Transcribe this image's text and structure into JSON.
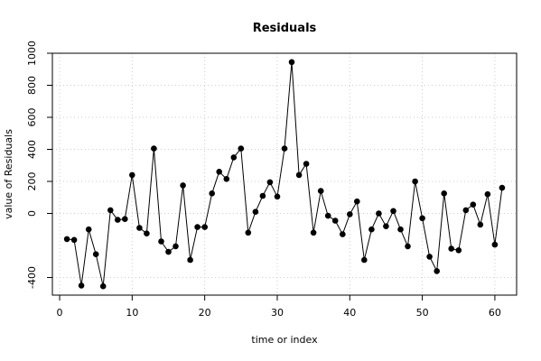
{
  "chart_data": {
    "type": "line",
    "title": "Residuals",
    "xlabel": "time or index",
    "ylabel": "value of Residuals",
    "xlim": [
      -1,
      63
    ],
    "ylim": [
      -510,
      1000
    ],
    "x_ticks": [
      0,
      10,
      20,
      30,
      40,
      50,
      60
    ],
    "y_ticks": [
      -400,
      0,
      200,
      400,
      600,
      800,
      1000
    ],
    "grid": true,
    "markers": "filled-circle",
    "line_color": "#000000",
    "grid_color": "#cccccc",
    "series": [
      {
        "x": [
          1,
          2,
          3,
          4,
          5,
          6,
          7,
          8,
          9,
          10,
          11,
          12,
          13,
          14,
          15,
          16,
          17,
          18,
          19,
          20,
          21,
          22,
          23,
          24,
          25,
          26,
          27,
          28,
          29,
          30,
          31,
          32,
          33,
          34,
          35,
          36,
          37,
          38,
          39,
          40,
          41,
          42,
          43,
          44,
          45,
          46,
          47,
          48,
          49,
          50,
          51,
          52,
          53,
          54,
          55,
          56,
          57,
          58,
          59,
          60,
          61
        ],
        "values": [
          -160,
          -165,
          -450,
          -100,
          -255,
          -455,
          20,
          -40,
          -35,
          240,
          -90,
          -125,
          405,
          -175,
          -240,
          -205,
          175,
          -290,
          -85,
          -85,
          125,
          260,
          215,
          350,
          405,
          -120,
          10,
          110,
          195,
          105,
          405,
          945,
          240,
          310,
          -120,
          140,
          -15,
          -45,
          -130,
          -5,
          75,
          -290,
          -100,
          0,
          -80,
          15,
          -100,
          -205,
          200,
          -30,
          -270,
          -360,
          125,
          -220,
          -230,
          20,
          55,
          -70,
          120,
          -195,
          160
        ]
      }
    ]
  }
}
